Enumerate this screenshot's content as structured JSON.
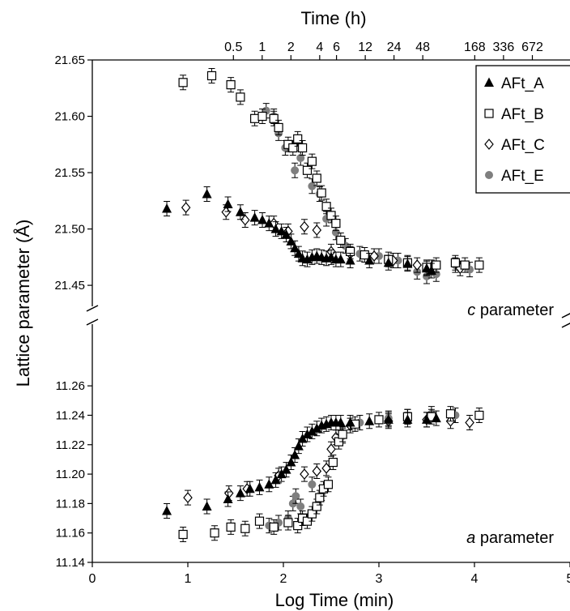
{
  "chart_data": {
    "type": "scatter",
    "top_axis": {
      "label": "Time (h)",
      "ticks": [
        {
          "label": "0.5",
          "log_min": 1.477
        },
        {
          "label": "1",
          "log_min": 1.778
        },
        {
          "label": "2",
          "log_min": 2.079
        },
        {
          "label": "4",
          "log_min": 2.38
        },
        {
          "label": "6",
          "log_min": 2.556
        },
        {
          "label": "12",
          "log_min": 2.857
        },
        {
          "label": "24",
          "log_min": 3.158
        },
        {
          "label": "48",
          "log_min": 3.459
        },
        {
          "label": "168",
          "log_min": 4.003
        },
        {
          "label": "336",
          "log_min": 4.304
        },
        {
          "label": "672",
          "log_min": 4.606
        }
      ]
    },
    "xlabel": "Log Time (min)",
    "xlim": [
      0,
      5
    ],
    "xticks": [
      "0",
      "1",
      "2",
      "3",
      "4",
      "5"
    ],
    "ylabel": "Lattice parameter (Å)",
    "colors": {
      "filled": "#000000",
      "grey": "#7f7f7f",
      "open": "#ffffff"
    },
    "legend": {
      "position": "top-right",
      "entries": [
        {
          "name": "AFt_A",
          "marker": "filled-triangle"
        },
        {
          "name": "AFt_B",
          "marker": "open-square"
        },
        {
          "name": "AFt_C",
          "marker": "open-diamond"
        },
        {
          "name": "AFt_E",
          "marker": "grey-circle"
        }
      ]
    },
    "panels": [
      {
        "label_italic": "c",
        "label_rest": " parameter",
        "ylim": [
          21.44,
          21.65
        ],
        "yticks": [
          "21.45",
          "21.50",
          "21.55",
          "21.60",
          "21.65"
        ],
        "series": [
          {
            "name": "AFt_A",
            "points": [
              [
                0.78,
                21.518
              ],
              [
                1.2,
                21.531
              ],
              [
                1.42,
                21.522
              ],
              [
                1.55,
                21.515
              ],
              [
                1.7,
                21.51
              ],
              [
                1.78,
                21.508
              ],
              [
                1.85,
                21.505
              ],
              [
                1.92,
                21.5
              ],
              [
                1.98,
                21.498
              ],
              [
                2.03,
                21.495
              ],
              [
                2.08,
                21.489
              ],
              [
                2.12,
                21.483
              ],
              [
                2.16,
                21.478
              ],
              [
                2.2,
                21.474
              ],
              [
                2.25,
                21.473
              ],
              [
                2.3,
                21.475
              ],
              [
                2.35,
                21.476
              ],
              [
                2.4,
                21.475
              ],
              [
                2.45,
                21.474
              ],
              [
                2.5,
                21.475
              ],
              [
                2.55,
                21.473
              ],
              [
                2.6,
                21.473
              ],
              [
                2.7,
                21.472
              ],
              [
                2.9,
                21.472
              ],
              [
                3.1,
                21.47
              ],
              [
                3.3,
                21.469
              ],
              [
                3.5,
                21.465
              ],
              [
                3.55,
                21.463
              ]
            ]
          },
          {
            "name": "AFt_B",
            "points": [
              [
                0.95,
                21.63
              ],
              [
                1.25,
                21.636
              ],
              [
                1.45,
                21.628
              ],
              [
                1.55,
                21.617
              ],
              [
                1.7,
                21.598
              ],
              [
                1.78,
                21.6
              ],
              [
                1.9,
                21.598
              ],
              [
                1.95,
                21.59
              ],
              [
                2.05,
                21.575
              ],
              [
                2.1,
                21.572
              ],
              [
                2.15,
                21.58
              ],
              [
                2.2,
                21.572
              ],
              [
                2.25,
                21.552
              ],
              [
                2.3,
                21.56
              ],
              [
                2.35,
                21.545
              ],
              [
                2.4,
                21.532
              ],
              [
                2.45,
                21.52
              ],
              [
                2.5,
                21.512
              ],
              [
                2.55,
                21.505
              ],
              [
                2.6,
                21.49
              ],
              [
                2.7,
                21.48
              ],
              [
                2.85,
                21.477
              ],
              [
                3.1,
                21.473
              ],
              [
                3.3,
                21.47
              ],
              [
                3.5,
                21.466
              ],
              [
                3.6,
                21.468
              ],
              [
                3.8,
                21.47
              ],
              [
                3.9,
                21.468
              ],
              [
                4.05,
                21.468
              ]
            ]
          },
          {
            "name": "AFt_C",
            "points": [
              [
                0.98,
                21.519
              ],
              [
                1.4,
                21.515
              ],
              [
                1.6,
                21.508
              ],
              [
                1.9,
                21.505
              ],
              [
                2.05,
                21.498
              ],
              [
                2.22,
                21.502
              ],
              [
                2.35,
                21.499
              ],
              [
                2.5,
                21.48
              ],
              [
                2.7,
                21.478
              ],
              [
                2.95,
                21.476
              ],
              [
                3.15,
                21.472
              ],
              [
                3.4,
                21.468
              ],
              [
                3.55,
                21.466
              ],
              [
                3.85,
                21.465
              ]
            ]
          },
          {
            "name": "AFt_E",
            "points": [
              [
                1.82,
                21.605
              ],
              [
                1.9,
                21.6
              ],
              [
                1.95,
                21.585
              ],
              [
                2.02,
                21.572
              ],
              [
                2.12,
                21.552
              ],
              [
                2.18,
                21.563
              ],
              [
                2.3,
                21.538
              ],
              [
                2.38,
                21.531
              ],
              [
                2.45,
                21.509
              ],
              [
                2.55,
                21.497
              ],
              [
                2.65,
                21.485
              ],
              [
                2.8,
                21.478
              ],
              [
                3.0,
                21.476
              ],
              [
                3.2,
                21.472
              ],
              [
                3.4,
                21.462
              ],
              [
                3.5,
                21.458
              ],
              [
                3.6,
                21.46
              ],
              [
                3.8,
                21.468
              ],
              [
                3.95,
                21.464
              ]
            ]
          }
        ]
      },
      {
        "label_italic": "a",
        "label_rest": " parameter",
        "ylim": [
          11.14,
          11.27
        ],
        "yticks": [
          "11.14",
          "11.16",
          "11.18",
          "11.20",
          "11.22",
          "11.24",
          "11.26"
        ],
        "series": [
          {
            "name": "AFt_A",
            "points": [
              [
                0.78,
                11.175
              ],
              [
                1.2,
                11.178
              ],
              [
                1.42,
                11.183
              ],
              [
                1.55,
                11.187
              ],
              [
                1.65,
                11.19
              ],
              [
                1.75,
                11.191
              ],
              [
                1.85,
                11.193
              ],
              [
                1.92,
                11.196
              ],
              [
                1.98,
                11.2
              ],
              [
                2.03,
                11.203
              ],
              [
                2.08,
                11.208
              ],
              [
                2.12,
                11.213
              ],
              [
                2.16,
                11.219
              ],
              [
                2.2,
                11.224
              ],
              [
                2.25,
                11.227
              ],
              [
                2.3,
                11.229
              ],
              [
                2.35,
                11.231
              ],
              [
                2.4,
                11.233
              ],
              [
                2.45,
                11.234
              ],
              [
                2.5,
                11.235
              ],
              [
                2.55,
                11.235
              ],
              [
                2.6,
                11.235
              ],
              [
                2.7,
                11.235
              ],
              [
                2.9,
                11.236
              ],
              [
                3.1,
                11.237
              ],
              [
                3.3,
                11.237
              ],
              [
                3.5,
                11.237
              ],
              [
                3.6,
                11.238
              ]
            ]
          },
          {
            "name": "AFt_B",
            "points": [
              [
                0.95,
                11.159
              ],
              [
                1.28,
                11.16
              ],
              [
                1.45,
                11.164
              ],
              [
                1.6,
                11.163
              ],
              [
                1.75,
                11.168
              ],
              [
                1.9,
                11.164
              ],
              [
                2.05,
                11.167
              ],
              [
                2.15,
                11.165
              ],
              [
                2.2,
                11.17
              ],
              [
                2.25,
                11.168
              ],
              [
                2.3,
                11.173
              ],
              [
                2.35,
                11.178
              ],
              [
                2.38,
                11.184
              ],
              [
                2.42,
                11.19
              ],
              [
                2.47,
                11.193
              ],
              [
                2.52,
                11.208
              ],
              [
                2.58,
                11.222
              ],
              [
                2.62,
                11.227
              ],
              [
                2.75,
                11.234
              ],
              [
                3.0,
                11.237
              ],
              [
                3.3,
                11.239
              ],
              [
                3.55,
                11.239
              ],
              [
                3.75,
                11.241
              ],
              [
                4.05,
                11.24
              ]
            ]
          },
          {
            "name": "AFt_C",
            "points": [
              [
                1.0,
                11.184
              ],
              [
                1.43,
                11.187
              ],
              [
                1.62,
                11.19
              ],
              [
                1.95,
                11.199
              ],
              [
                2.22,
                11.2
              ],
              [
                2.35,
                11.202
              ],
              [
                2.45,
                11.204
              ],
              [
                2.5,
                11.217
              ],
              [
                2.55,
                11.225
              ],
              [
                2.7,
                11.233
              ],
              [
                3.1,
                11.236
              ],
              [
                3.5,
                11.237
              ],
              [
                3.75,
                11.236
              ],
              [
                3.95,
                11.235
              ]
            ]
          },
          {
            "name": "AFt_E",
            "points": [
              [
                1.85,
                11.165
              ],
              [
                1.95,
                11.167
              ],
              [
                2.05,
                11.17
              ],
              [
                2.1,
                11.18
              ],
              [
                2.13,
                11.185
              ],
              [
                2.18,
                11.178
              ],
              [
                2.3,
                11.193
              ],
              [
                2.4,
                11.187
              ],
              [
                2.62,
                11.226
              ],
              [
                2.8,
                11.235
              ],
              [
                3.1,
                11.238
              ],
              [
                3.3,
                11.239
              ],
              [
                3.55,
                11.241
              ],
              [
                3.8,
                11.24
              ]
            ]
          }
        ]
      }
    ]
  }
}
